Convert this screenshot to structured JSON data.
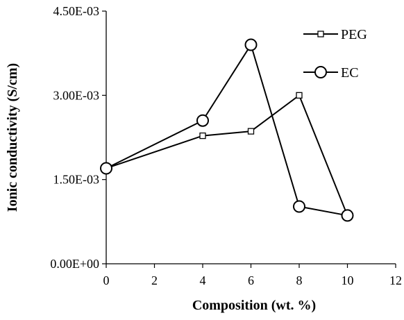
{
  "chart_data": {
    "type": "line",
    "xlabel": "Composition (wt. %)",
    "ylabel": "Ionic conductivity (S/cm)",
    "xlim": [
      0,
      12
    ],
    "ylim": [
      0,
      0.0045
    ],
    "x_ticks": [
      "0",
      "2",
      "4",
      "6",
      "8",
      "10",
      "12"
    ],
    "y_ticks": [
      "0.00E+00",
      "1.50E-03",
      "3.00E-03",
      "4.50E-03"
    ],
    "grid": false,
    "legend_position": "top-right",
    "series": [
      {
        "name": "PEG",
        "marker": "square",
        "color": "#000000",
        "x": [
          0,
          4,
          6,
          8,
          10
        ],
        "y": [
          0.0017,
          0.00228,
          0.00236,
          0.003,
          0.00086
        ]
      },
      {
        "name": "EC",
        "marker": "circle",
        "color": "#000000",
        "x": [
          0,
          4,
          6,
          8,
          10
        ],
        "y": [
          0.0017,
          0.00255,
          0.0039,
          0.00102,
          0.00086
        ]
      }
    ]
  }
}
